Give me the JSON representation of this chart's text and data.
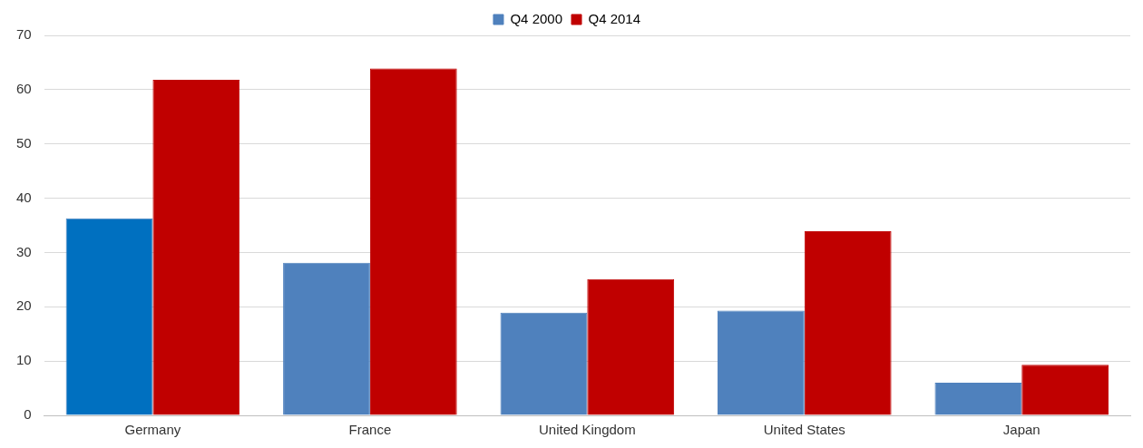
{
  "chart_data": {
    "type": "bar",
    "categories": [
      "Germany",
      "France",
      "United Kingdom",
      "United States",
      "Japan"
    ],
    "series": [
      {
        "name": "Q4 2000",
        "color": "#4f81bd",
        "colors": [
          "#0070c0",
          "#4f81bd",
          "#4f81bd",
          "#4f81bd",
          "#4f81bd"
        ],
        "values": [
          36.3,
          28.1,
          18.9,
          19.3,
          6.0
        ]
      },
      {
        "name": "Q4 2014",
        "color": "#c00000",
        "values": [
          61.8,
          63.9,
          25.1,
          33.9,
          9.3
        ]
      }
    ],
    "ylim": [
      0,
      70
    ],
    "yticks": [
      0,
      10,
      20,
      30,
      40,
      50,
      60,
      70
    ],
    "grid": "y",
    "legend": "top"
  }
}
